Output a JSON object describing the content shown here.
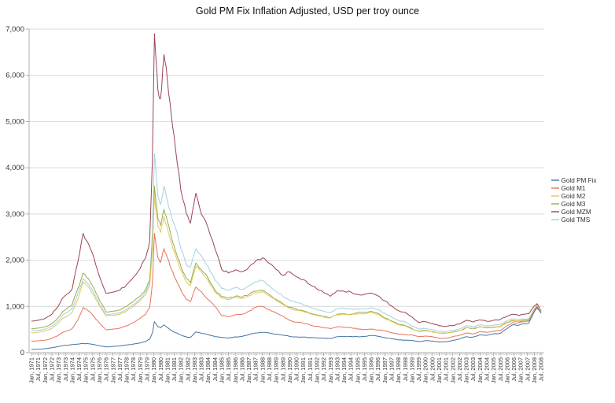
{
  "title": "Gold PM Fix Inflation Adjusted, USD per troy ounce",
  "legend": {
    "position": "right",
    "items": [
      "Gold PM Fix",
      "Gold M1",
      "Gold M2",
      "Gold M3",
      "Gold MZM",
      "Gold TMS"
    ]
  },
  "colors": {
    "gold_pm_fix": "#4574a6",
    "gold_m1": "#e9725b",
    "gold_m2": "#e4c85e",
    "gold_m3": "#93ad4c",
    "gold_mzm": "#9a4553",
    "gold_tms": "#a3d1e0",
    "grid": "#d9d9d9",
    "axis": "#b0b0b0",
    "tick": "#999999",
    "label_text": "#333333",
    "title_text": "#111111"
  },
  "chart_data": {
    "type": "line",
    "title": "Gold PM Fix Inflation Adjusted, USD per troy ounce",
    "xlabel": "",
    "ylabel": "",
    "ylim": [
      0,
      7000
    ],
    "grid": "horizontal",
    "legend_position": "right",
    "ytick_labels": [
      "0",
      "1,000",
      "2,000",
      "3,000",
      "4,000",
      "5,000",
      "6,000",
      "7,000"
    ],
    "xtick_labels": [
      "Jan, 1971",
      "Jul, 1971",
      "Jan, 1972",
      "Jul, 1972",
      "Jan, 1973",
      "Jul, 1973",
      "Jan, 1974",
      "Jul, 1974",
      "Jan, 1975",
      "Jul, 1975",
      "Jan, 1976",
      "Jul, 1976",
      "Jan, 1977",
      "Jul, 1977",
      "Jan, 1978",
      "Jul, 1978",
      "Jan, 1979",
      "Jul, 1979",
      "Jan, 1980",
      "Jul, 1980",
      "Jan, 1981",
      "Jul, 1981",
      "Jan, 1982",
      "Jul, 1982",
      "Jan, 1983",
      "Jul, 1983",
      "Jan, 1984",
      "Jul, 1984",
      "Jan, 1985",
      "Jul, 1985",
      "Jan, 1986",
      "Jul, 1986",
      "Jan, 1987",
      "Jul, 1987",
      "Jan, 1988",
      "Jul, 1988",
      "Jan, 1989",
      "Jul, 1989",
      "Jan, 1990",
      "Jul, 1990",
      "Jan, 1991",
      "Jul, 1991",
      "Jan, 1992",
      "Jul, 1992",
      "Jan, 1993",
      "Jul, 1993",
      "Jan, 1994",
      "Jul, 1994",
      "Jan, 1995",
      "Jul, 1995",
      "Jan, 1996",
      "Jul, 1996",
      "Jan, 1997",
      "Jul, 1997",
      "Jan, 1998",
      "Jul, 1998",
      "Jan, 1999",
      "Jul, 1999",
      "Jan, 2000",
      "Jul, 2000",
      "Jan, 2001",
      "Jul, 2001",
      "Jan, 2002",
      "Jul, 2002",
      "Jan, 2003",
      "Jul, 2003",
      "Jan, 2004",
      "Jul, 2004",
      "Jan, 2005",
      "Jul, 2005",
      "Jan, 2006",
      "Jul, 2006",
      "Jan, 2007",
      "Jul, 2007",
      "Jan, 2008",
      "Jul, 2008"
    ],
    "x_unit": "decimal_year",
    "x": [
      1971.0,
      1971.5,
      1972.0,
      1972.5,
      1973.0,
      1973.3,
      1973.6,
      1974.0,
      1974.4,
      1974.8,
      1975.2,
      1975.6,
      1976.0,
      1976.5,
      1977.0,
      1977.5,
      1978.0,
      1978.5,
      1979.0,
      1979.4,
      1979.7,
      1979.9,
      1980.05,
      1980.3,
      1980.5,
      1980.75,
      1981.0,
      1981.3,
      1981.6,
      1982.0,
      1982.4,
      1982.7,
      1983.1,
      1983.5,
      1984.0,
      1984.5,
      1985.0,
      1985.5,
      1986.0,
      1986.5,
      1987.0,
      1987.5,
      1988.0,
      1988.5,
      1989.0,
      1989.5,
      1990.0,
      1990.5,
      1991.0,
      1991.5,
      1992.0,
      1992.5,
      1993.0,
      1993.5,
      1994.0,
      1994.5,
      1995.0,
      1995.5,
      1996.0,
      1996.5,
      1997.0,
      1997.5,
      1998.0,
      1998.5,
      1999.0,
      1999.5,
      2000.0,
      2000.5,
      2001.0,
      2001.5,
      2002.0,
      2002.5,
      2003.0,
      2003.5,
      2004.0,
      2004.5,
      2005.0,
      2005.5,
      2006.0,
      2006.4,
      2006.8,
      2007.2,
      2007.6,
      2008.0,
      2008.2,
      2008.5
    ],
    "series": [
      {
        "name": "Gold PM Fix",
        "color": "#4574a6",
        "values": [
          70,
          75,
          85,
          105,
          130,
          150,
          160,
          175,
          185,
          200,
          190,
          175,
          150,
          125,
          135,
          145,
          165,
          185,
          210,
          240,
          290,
          430,
          670,
          560,
          540,
          600,
          540,
          480,
          430,
          380,
          340,
          330,
          450,
          420,
          390,
          345,
          330,
          315,
          340,
          350,
          390,
          425,
          440,
          425,
          400,
          380,
          350,
          340,
          335,
          325,
          320,
          310,
          305,
          345,
          350,
          350,
          345,
          350,
          370,
          355,
          325,
          300,
          275,
          270,
          265,
          240,
          260,
          250,
          230,
          235,
          265,
          295,
          345,
          335,
          385,
          375,
          405,
          415,
          520,
          600,
          590,
          620,
          640,
          885,
          975,
          855
        ]
      },
      {
        "name": "Gold M1",
        "color": "#e9725b",
        "values": [
          250,
          255,
          270,
          305,
          380,
          440,
          470,
          520,
          700,
          980,
          900,
          780,
          640,
          490,
          510,
          530,
          580,
          650,
          740,
          830,
          980,
          1500,
          2580,
          2050,
          1950,
          2250,
          2050,
          1800,
          1600,
          1350,
          1150,
          1100,
          1420,
          1320,
          1150,
          1000,
          800,
          780,
          820,
          830,
          900,
          980,
          1000,
          930,
          860,
          790,
          700,
          660,
          640,
          600,
          570,
          540,
          520,
          560,
          550,
          540,
          510,
          500,
          510,
          490,
          470,
          430,
          400,
          390,
          385,
          345,
          360,
          345,
          310,
          310,
          345,
          375,
          425,
          405,
          455,
          440,
          465,
          475,
          580,
          650,
          640,
          665,
          685,
          905,
          995,
          875
        ]
      },
      {
        "name": "Gold M2",
        "color": "#e4c85e",
        "values": [
          430,
          440,
          465,
          520,
          640,
          740,
          790,
          870,
          1150,
          1530,
          1420,
          1240,
          1010,
          790,
          810,
          830,
          900,
          1000,
          1120,
          1250,
          1450,
          2200,
          3400,
          2750,
          2600,
          2950,
          2700,
          2380,
          2100,
          1780,
          1530,
          1450,
          1870,
          1740,
          1560,
          1310,
          1180,
          1150,
          1190,
          1170,
          1230,
          1300,
          1320,
          1230,
          1130,
          1040,
          960,
          920,
          890,
          840,
          800,
          770,
          750,
          820,
          830,
          820,
          835,
          840,
          870,
          830,
          735,
          670,
          605,
          580,
          510,
          455,
          470,
          445,
          420,
          415,
          440,
          475,
          545,
          520,
          565,
          545,
          555,
          570,
          665,
          700,
          690,
          710,
          720,
          930,
          1020,
          885
        ]
      },
      {
        "name": "Gold M3",
        "color": "#93ad4c",
        "values": [
          520,
          530,
          560,
          625,
          770,
          890,
          950,
          1040,
          1380,
          1720,
          1600,
          1390,
          1130,
          880,
          900,
          920,
          1000,
          1100,
          1220,
          1360,
          1570,
          2350,
          3600,
          2900,
          2750,
          3100,
          2840,
          2500,
          2200,
          1860,
          1600,
          1510,
          1940,
          1800,
          1610,
          1350,
          1210,
          1180,
          1220,
          1200,
          1260,
          1330,
          1350,
          1260,
          1150,
          1060,
          980,
          940,
          905,
          855,
          815,
          780,
          760,
          830,
          840,
          830,
          865,
          870,
          895,
          850,
          750,
          685,
          615,
          590,
          520,
          465,
          480,
          455,
          425,
          420,
          445,
          475,
          540,
          515,
          555,
          535,
          545,
          560,
          655,
          690,
          680,
          695,
          705,
          920,
          1010,
          875
        ]
      },
      {
        "name": "Gold MZM",
        "color": "#9a4553",
        "values": [
          680,
          700,
          740,
          830,
          1020,
          1180,
          1260,
          1380,
          1950,
          2580,
          2350,
          2050,
          1650,
          1280,
          1310,
          1350,
          1470,
          1630,
          1820,
          2050,
          2400,
          4200,
          6900,
          5700,
          5500,
          6450,
          5900,
          5100,
          4400,
          3500,
          3000,
          2800,
          3450,
          3000,
          2700,
          2250,
          1800,
          1720,
          1790,
          1750,
          1850,
          1980,
          2050,
          1930,
          1800,
          1670,
          1750,
          1640,
          1580,
          1470,
          1380,
          1300,
          1220,
          1340,
          1330,
          1310,
          1260,
          1260,
          1290,
          1230,
          1120,
          1010,
          910,
          870,
          770,
          650,
          670,
          630,
          580,
          565,
          585,
          620,
          700,
          660,
          710,
          680,
          700,
          715,
          790,
          830,
          810,
          830,
          845,
          1010,
          1060,
          900
        ]
      },
      {
        "name": "Gold TMS",
        "color": "#a3d1e0",
        "values": [
          470,
          480,
          510,
          570,
          700,
          810,
          860,
          950,
          1270,
          1600,
          1480,
          1290,
          1050,
          820,
          840,
          860,
          940,
          1040,
          1160,
          1300,
          1530,
          2600,
          4300,
          3400,
          3200,
          3600,
          3300,
          2950,
          2700,
          2250,
          1900,
          1850,
          2250,
          2090,
          1870,
          1570,
          1390,
          1350,
          1400,
          1370,
          1450,
          1530,
          1560,
          1450,
          1330,
          1220,
          1130,
          1080,
          1040,
          980,
          935,
          895,
          870,
          950,
          960,
          945,
          940,
          945,
          975,
          930,
          850,
          770,
          695,
          665,
          575,
          510,
          525,
          495,
          465,
          455,
          480,
          515,
          585,
          555,
          600,
          580,
          595,
          610,
          700,
          730,
          715,
          730,
          740,
          955,
          1030,
          890
        ]
      }
    ]
  }
}
